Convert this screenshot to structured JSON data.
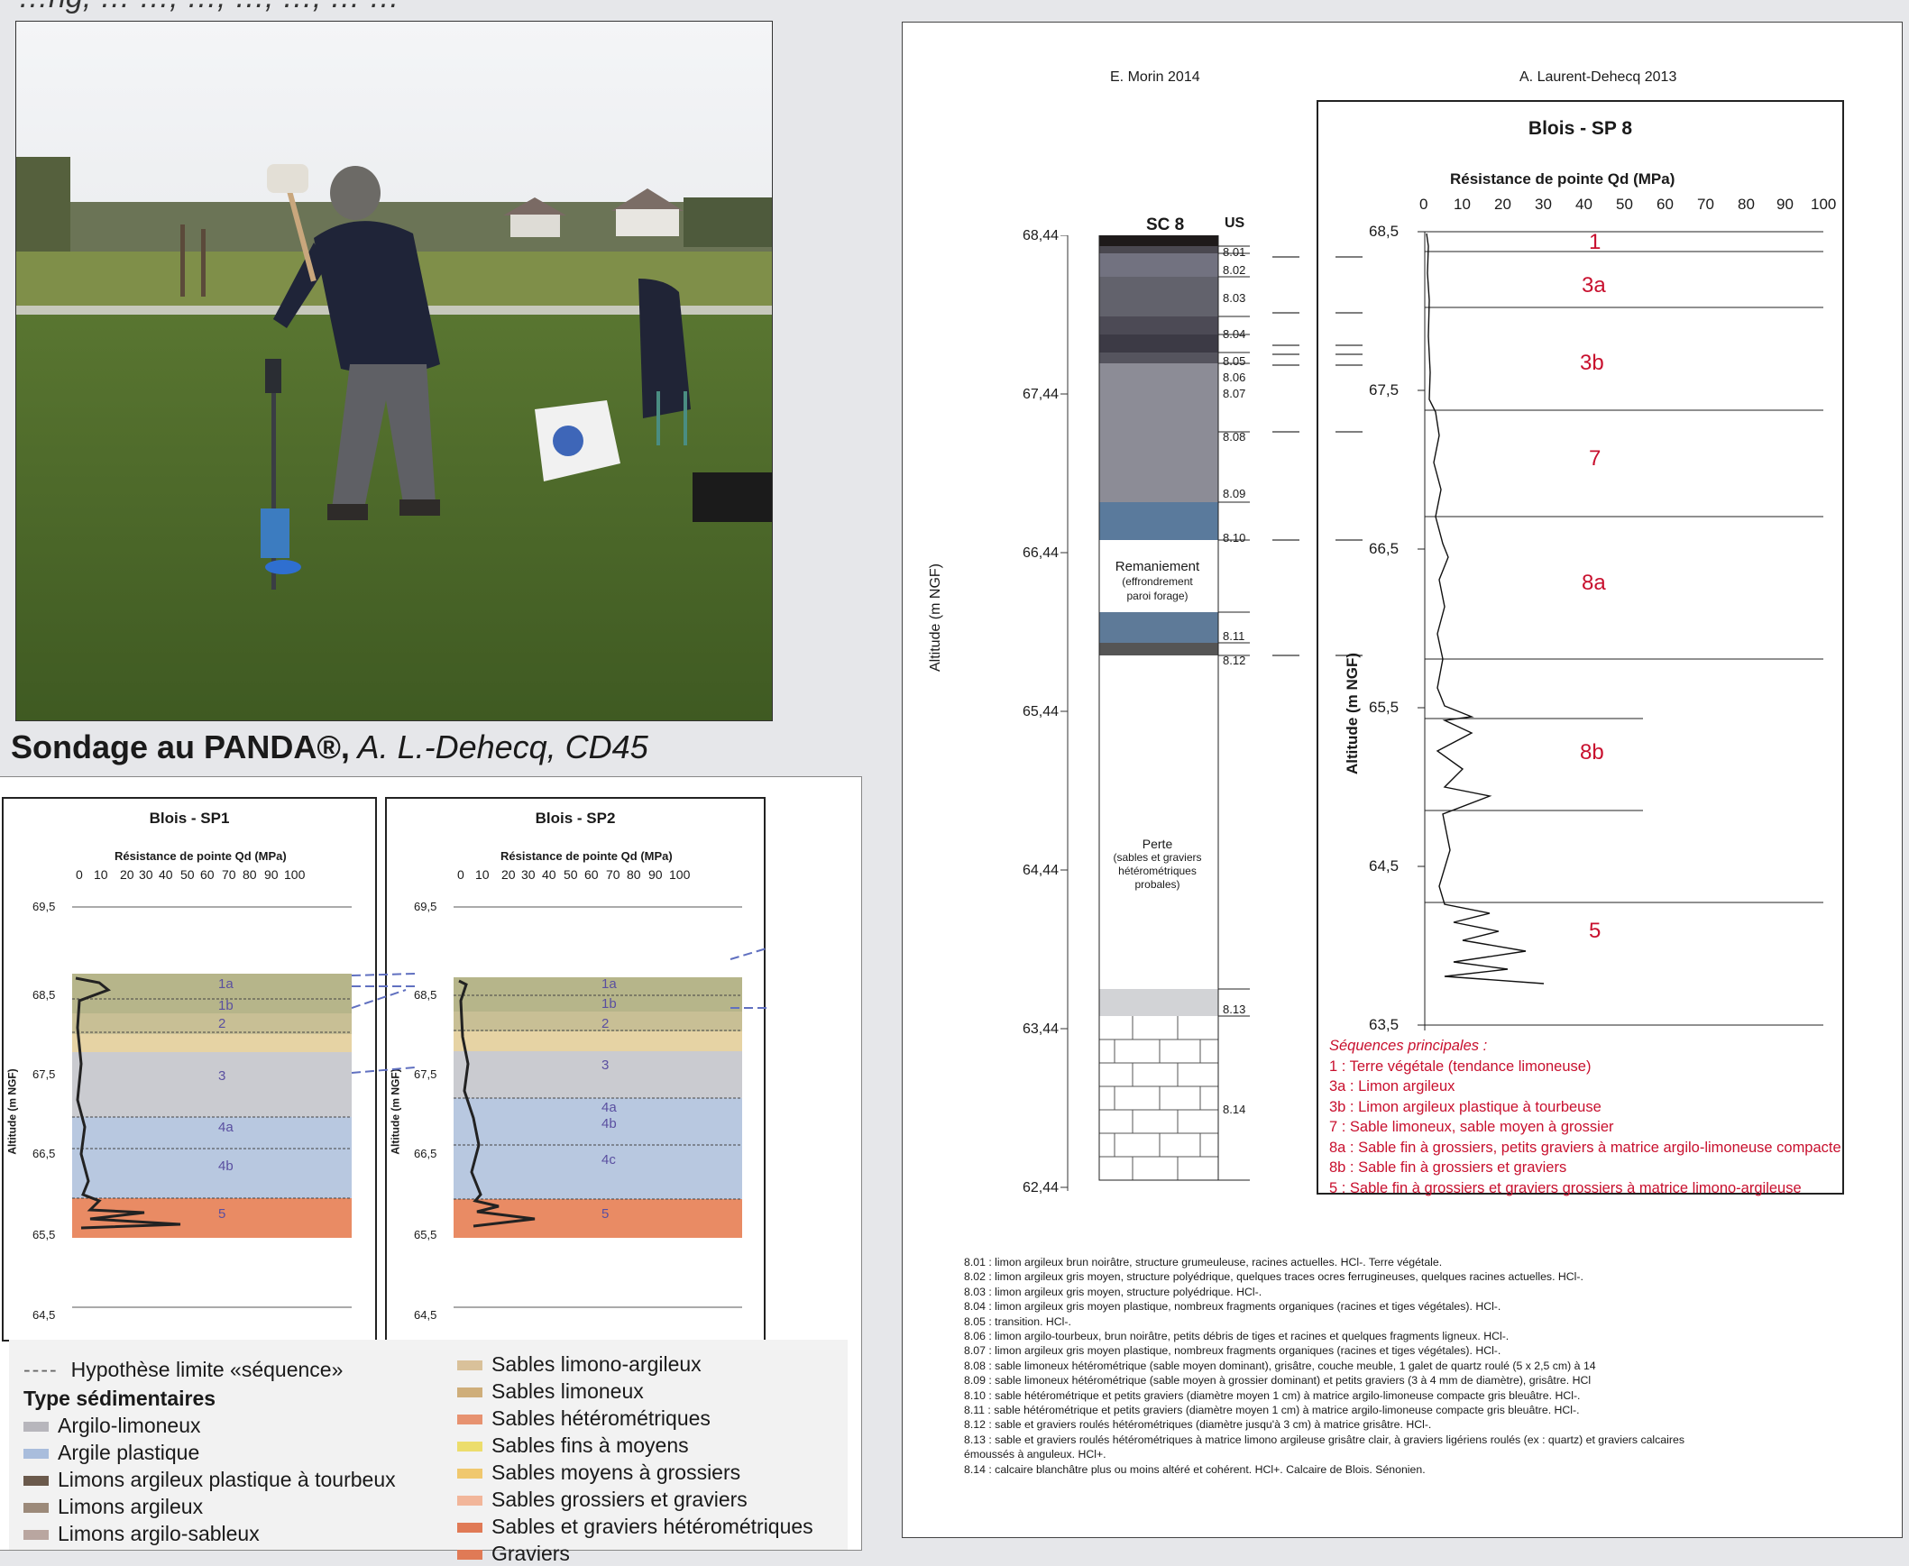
{
  "top_line": "…ng, … …, …, …, …, … …",
  "photo": {
    "caption_bold": "Sondage au PANDA®,",
    "caption_italic": " A. L.-Dehecq, CD45"
  },
  "sp1": {
    "title": "Blois - SP1",
    "axis_title": "Résistance de pointe Qd (MPa)",
    "x_ticks": [
      "0",
      "10",
      "20",
      "30",
      "40",
      "50",
      "60",
      "70",
      "80",
      "90",
      "100"
    ],
    "y_label": "Altitude (m NGF)",
    "y_ticks": [
      "69,5",
      "68,5",
      "67,5",
      "66,5",
      "65,5",
      "64,5"
    ],
    "layers": [
      "1a",
      "1b",
      "2",
      "3",
      "4a",
      "4b",
      "5"
    ]
  },
  "sp2": {
    "title": "Blois - SP2",
    "axis_title": "Résistance de pointe Qd (MPa)",
    "x_ticks": [
      "0",
      "10",
      "20",
      "30",
      "40",
      "50",
      "60",
      "70",
      "80",
      "90",
      "100"
    ],
    "y_label": "Altitude (m NGF)",
    "y_ticks": [
      "69,5",
      "68,5",
      "67,5",
      "66,5",
      "65,5",
      "64,5"
    ],
    "layers": [
      "1a",
      "1b",
      "2",
      "3",
      "4a",
      "4b",
      "4c",
      "5"
    ]
  },
  "legend": {
    "dashed_label": "Hypothèse limite «séquence»",
    "heading": "Type sédimentaires",
    "left_items": [
      {
        "label": "Argilo-limoneux",
        "color": "#b7b6bc"
      },
      {
        "label": "Argile plastique",
        "color": "#a9bddc"
      },
      {
        "label": "Limons argileux plastique à tourbeux",
        "color": "#6b5a4c"
      },
      {
        "label": "Limons argileux",
        "color": "#9c8a7a"
      },
      {
        "label": "Limons argilo-sableux",
        "color": "#b9a6a0"
      }
    ],
    "right_items": [
      {
        "label": "Sables limono-argileux",
        "color": "#d9c19a"
      },
      {
        "label": "Sables limoneux",
        "color": "#cfae7a"
      },
      {
        "label": "Sables hétérométriques",
        "color": "#e79270"
      },
      {
        "label": "Sables fins à moyens",
        "color": "#ecdd6c"
      },
      {
        "label": "Sables moyens à grossiers",
        "color": "#f0c86e"
      },
      {
        "label": "Sables grossiers et graviers",
        "color": "#f2b69a"
      },
      {
        "label": "Sables et graviers hétérométriques",
        "color": "#e07a56"
      },
      {
        "label": "Graviers",
        "color": "#e07a56"
      }
    ]
  },
  "right": {
    "author_left": "E. Morin 2014",
    "author_right": "A. Laurent-Dehecq 2013",
    "y_label_left": "Altitude (m NGF)",
    "col_title": "SC 8",
    "col_us": "US",
    "left_ticks": [
      "68,44",
      "67,44",
      "66,44",
      "65,44",
      "64,44",
      "63,44",
      "62,44"
    ],
    "us_labels": [
      "8.01",
      "8.02",
      "8.03",
      "8.04",
      "8.05",
      "8.06",
      "8.07",
      "8.08",
      "8.09",
      "8.10",
      "8.11",
      "8.12",
      "8.13",
      "8.14"
    ],
    "remaniement": [
      "Remaniement",
      "(effrondrement",
      "paroi forage)"
    ],
    "perte": [
      "Perte",
      "(sables et graviers",
      "hétérométriques",
      "probales)"
    ],
    "sp8_title": "Blois - SP 8",
    "sp8_axis": "Résistance de pointe Qd (MPa)",
    "sp8_xticks": [
      "0",
      "10",
      "20",
      "30",
      "40",
      "50",
      "60",
      "70",
      "80",
      "90",
      "100"
    ],
    "sp8_ylabel": "Altitude (m NGF)",
    "sp8_yticks": [
      "68,5",
      "67,5",
      "66,5",
      "65,5",
      "64,5",
      "63,5"
    ],
    "sp8_layers": [
      "1",
      "3a",
      "3b",
      "7",
      "8a",
      "8b",
      "5"
    ],
    "seq_heading": "Séquences principales :",
    "seq_items": [
      "1 : Terre végétale (tendance limoneuse)",
      "3a :  Limon argileux",
      "3b :  Limon argileux plastique à tourbeuse",
      "7 : Sable limoneux, sable moyen à grossier",
      "8a : Sable fin à grossiers, petits graviers à matrice argilo-limoneuse compacte",
      "8b : Sable fin à grossiers et graviers",
      "5 : Sable fin à grossiers et graviers grossiers à matrice limono-argileuse"
    ],
    "descriptions": [
      "8.01 : limon argileux brun noirâtre, structure grumeuleuse, racines actuelles. HCl-. Terre végétale.",
      "8.02 : limon argileux gris moyen, structure polyédrique, quelques traces ocres ferrugineuses, quelques racines actuelles. HCl-.",
      "8.03 : limon argileux gris moyen, structure polyédrique. HCl-.",
      "8.04 : limon argileux gris moyen plastique, nombreux fragments organiques (racines et tiges végétales). HCl-.",
      "8.05 : transition. HCl-.",
      "8.06 : limon argilo-tourbeux, brun noirâtre, petits débris de tiges et racines et quelques fragments ligneux. HCl-.",
      "8.07 : limon argileux gris moyen plastique, nombreux fragments organiques (racines et tiges végétales). HCl-.",
      "8.08 : sable limoneux hétérométrique (sable moyen dominant), grisâtre, couche meuble, 1 galet de quartz roulé (5 x 2,5 cm) à 14",
      "8.09 : sable limoneux hétérométrique (sable moyen à grossier dominant) et petits graviers (3 à 4 mm de diamètre), grisâtre. HCl",
      "8.10 : sable hétérométrique et petits graviers (diamètre moyen 1 cm) à matrice argilo-limoneuse compacte gris bleuâtre. HCl-.",
      "8.11 : sable hétérométrique et petits graviers (diamètre moyen 1 cm) à matrice argilo-limoneuse compacte gris bleuâtre. HCl-.",
      "8.12 : sable et graviers roulés hétérométriques (diamètre jusqu'à 3 cm) à matrice grisâtre. HCl-.",
      "8.13 : sable et graviers roulés hétérométriques à matrice limono argileuse grisâtre clair, à graviers ligériens roulés (ex : quartz) et graviers calcaires",
      "émoussés à anguleux. HCl+.",
      "8.14 : calcaire blanchâtre plus ou moins altéré et cohérent. HCl+. Calcaire de Blois. Sénonien."
    ]
  }
}
